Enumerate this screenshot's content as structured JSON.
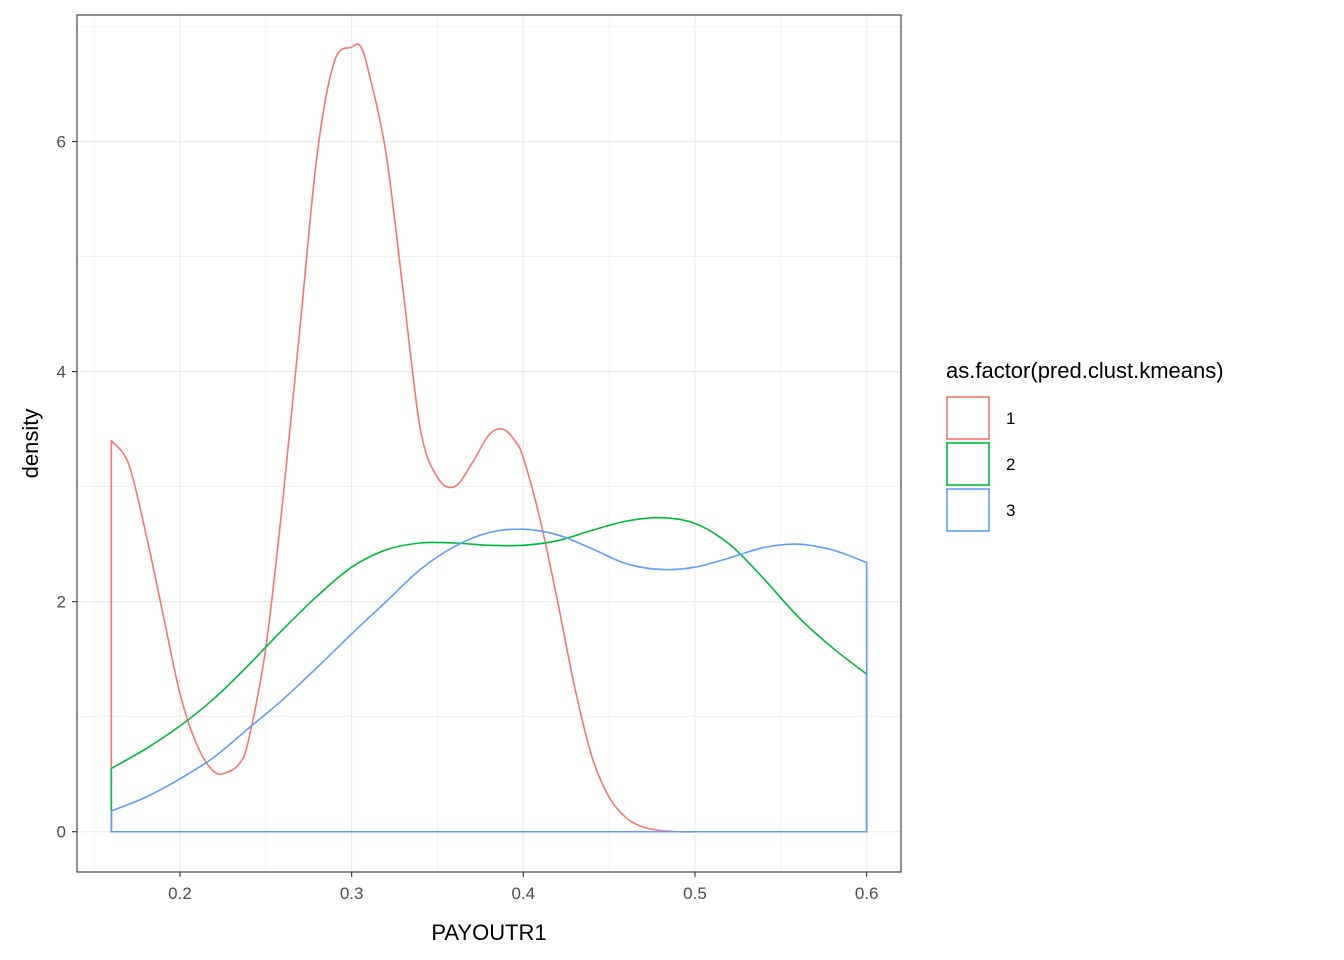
{
  "chart_data": {
    "type": "line",
    "geom": "density",
    "title": "",
    "xlabel": "PAYOUTR1",
    "ylabel": "density",
    "xlim": [
      0.14,
      0.62
    ],
    "ylim": [
      -0.35,
      7.1
    ],
    "x_ticks": [
      0.2,
      0.3,
      0.4,
      0.5,
      0.6
    ],
    "x_tick_labels": [
      "0.2",
      "0.3",
      "0.4",
      "0.5",
      "0.6"
    ],
    "y_ticks": [
      0,
      2,
      4,
      6
    ],
    "y_tick_labels": [
      "0",
      "2",
      "4",
      "6"
    ],
    "grid": true,
    "theme": "bw",
    "legend": {
      "title": "as.factor(pred.clust.kmeans)",
      "position": "right"
    },
    "series": [
      {
        "name": "1",
        "color": "#F8766D",
        "x": [
          0.16,
          0.17,
          0.18,
          0.19,
          0.2,
          0.21,
          0.22,
          0.228,
          0.235,
          0.24,
          0.25,
          0.26,
          0.27,
          0.28,
          0.29,
          0.3,
          0.305,
          0.31,
          0.32,
          0.33,
          0.34,
          0.35,
          0.36,
          0.37,
          0.38,
          0.388,
          0.395,
          0.4,
          0.41,
          0.42,
          0.43,
          0.44,
          0.45,
          0.46,
          0.47,
          0.48,
          0.49,
          0.5
        ],
        "values": [
          3.4,
          3.2,
          2.6,
          1.9,
          1.2,
          0.75,
          0.52,
          0.52,
          0.6,
          0.8,
          1.6,
          2.9,
          4.4,
          5.9,
          6.7,
          6.82,
          6.83,
          6.6,
          5.9,
          4.7,
          3.5,
          3.08,
          3.0,
          3.2,
          3.45,
          3.5,
          3.4,
          3.25,
          2.7,
          2.0,
          1.25,
          0.65,
          0.3,
          0.12,
          0.04,
          0.01,
          0.0,
          0.0
        ],
        "baseline_range": [
          0.16,
          0.5
        ]
      },
      {
        "name": "2",
        "color": "#00BA38",
        "x": [
          0.16,
          0.18,
          0.2,
          0.22,
          0.24,
          0.26,
          0.28,
          0.3,
          0.32,
          0.34,
          0.36,
          0.38,
          0.4,
          0.42,
          0.44,
          0.46,
          0.48,
          0.5,
          0.52,
          0.54,
          0.56,
          0.58,
          0.6
        ],
        "values": [
          0.55,
          0.72,
          0.92,
          1.16,
          1.45,
          1.76,
          2.05,
          2.3,
          2.45,
          2.51,
          2.51,
          2.49,
          2.49,
          2.53,
          2.62,
          2.7,
          2.73,
          2.68,
          2.5,
          2.2,
          1.87,
          1.6,
          1.37
        ],
        "baseline_range": [
          0.16,
          0.6
        ]
      },
      {
        "name": "3",
        "color": "#619CFF",
        "x": [
          0.16,
          0.18,
          0.2,
          0.22,
          0.24,
          0.26,
          0.28,
          0.3,
          0.32,
          0.34,
          0.36,
          0.38,
          0.4,
          0.42,
          0.44,
          0.46,
          0.48,
          0.5,
          0.52,
          0.54,
          0.56,
          0.58,
          0.6
        ],
        "values": [
          0.18,
          0.3,
          0.46,
          0.65,
          0.9,
          1.15,
          1.43,
          1.72,
          2.0,
          2.28,
          2.48,
          2.6,
          2.63,
          2.58,
          2.46,
          2.33,
          2.28,
          2.3,
          2.38,
          2.47,
          2.5,
          2.45,
          2.34
        ],
        "baseline_range": [
          0.16,
          0.6
        ]
      }
    ]
  }
}
